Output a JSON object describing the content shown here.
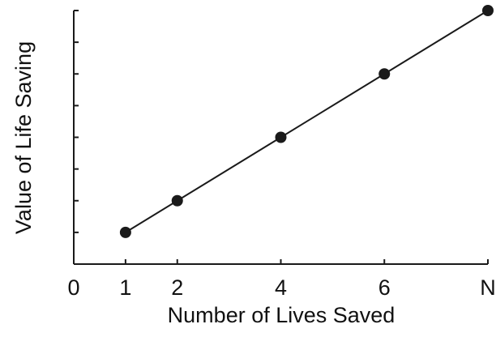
{
  "chart_data": {
    "type": "line",
    "title": "",
    "xlabel": "Number of Lives Saved",
    "ylabel": "Value of Life Saving",
    "x_ticks": [
      {
        "pos": 0,
        "label": "0"
      },
      {
        "pos": 1,
        "label": "1"
      },
      {
        "pos": 2,
        "label": "2"
      },
      {
        "pos": 4,
        "label": "4"
      },
      {
        "pos": 6,
        "label": "6"
      },
      {
        "pos": 8,
        "label": "N"
      }
    ],
    "y_tick_count": 8,
    "y_tick_labels": [],
    "xlim": [
      0,
      8
    ],
    "ylim": [
      0,
      8
    ],
    "series": [
      {
        "points": [
          {
            "x": 1,
            "y": 1
          },
          {
            "x": 2,
            "y": 2
          },
          {
            "x": 4,
            "y": 4
          },
          {
            "x": 6,
            "y": 6
          },
          {
            "x": 8,
            "y": 8
          }
        ]
      }
    ],
    "grid": false,
    "colors": {
      "line": "#1a1a1a",
      "marker": "#1a1a1a",
      "axis": "#1a1a1a"
    }
  }
}
